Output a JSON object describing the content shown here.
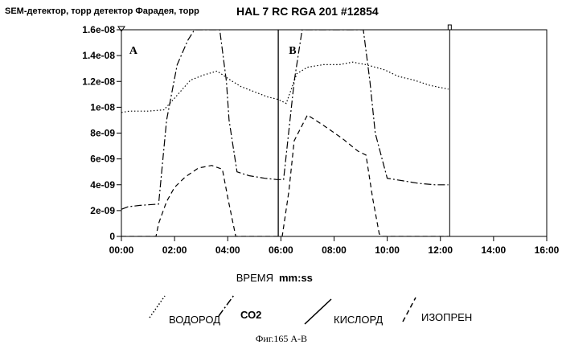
{
  "chart_data": {
    "type": "line",
    "ylabel": "SEM-детектор, торр детектор Фарадея, торр",
    "title": "HAL 7 RC RGA 201 #12854",
    "xlabel_left": "ВРЕМЯ",
    "xlabel_right": "mm:ss",
    "caption": "Фиг.165 А-В",
    "panel_labels": [
      {
        "text": "A",
        "x_min": 0.3
      },
      {
        "text": "B",
        "x_min": 6.3
      }
    ],
    "x_ticks": [
      {
        "value": 0,
        "label": "00:00"
      },
      {
        "value": 2,
        "label": "02:00"
      },
      {
        "value": 4,
        "label": "04:00"
      },
      {
        "value": 6,
        "label": "06:00"
      },
      {
        "value": 8,
        "label": "08:00"
      },
      {
        "value": 10,
        "label": "10:00"
      },
      {
        "value": 12,
        "label": "12:00"
      },
      {
        "value": 14,
        "label": "14:00"
      },
      {
        "value": 16,
        "label": "16:00"
      }
    ],
    "y_ticks": [
      {
        "value": 0,
        "label": "0"
      },
      {
        "value": 2e-09,
        "label": "2e-09"
      },
      {
        "value": 4e-09,
        "label": "4e-09"
      },
      {
        "value": 6e-09,
        "label": "6e-09"
      },
      {
        "value": 8e-09,
        "label": "8e-09"
      },
      {
        "value": 1e-08,
        "label": "1e-08"
      },
      {
        "value": 1.2e-08,
        "label": "1.2e-08"
      },
      {
        "value": 1.4e-08,
        "label": "1.4e-08"
      },
      {
        "value": 1.6e-08,
        "label": "1.6e-08"
      }
    ],
    "xlim": [
      0,
      16
    ],
    "ylim": [
      0,
      1.6e-08
    ],
    "vline_at": 5.9,
    "end_marker_at": 12.35,
    "series": [
      {
        "name": "ВОДОРОД",
        "dash": "1.5,2.5",
        "x": [
          0.0,
          0.3,
          1.0,
          1.6,
          2.0,
          2.6,
          3.1,
          3.6,
          4.1,
          4.5,
          5.0,
          5.5,
          5.9,
          6.2,
          6.6,
          7.0,
          7.6,
          8.2,
          8.7,
          9.2,
          9.9,
          10.4,
          11.0,
          11.6,
          12.3
        ],
        "y": [
          9.6e-09,
          9.7e-09,
          9.7e-09,
          9.8e-09,
          1.07e-08,
          1.21e-08,
          1.25e-08,
          1.28e-08,
          1.21e-08,
          1.16e-08,
          1.12e-08,
          1.08e-08,
          1.06e-08,
          1.03e-08,
          1.26e-08,
          1.31e-08,
          1.33e-08,
          1.33e-08,
          1.35e-08,
          1.33e-08,
          1.29e-08,
          1.24e-08,
          1.21e-08,
          1.17e-08,
          1.14e-08
        ]
      },
      {
        "name": "СО2",
        "dash": "9,3,2,3",
        "x": [
          0.0,
          0.25,
          0.7,
          1.4,
          1.7,
          2.1,
          2.5,
          2.75,
          3.7,
          3.95,
          4.05,
          4.35,
          4.8,
          5.4,
          5.85,
          6.1,
          6.5,
          6.8,
          9.1,
          9.35,
          9.55,
          10.0,
          10.6,
          11.2,
          11.8,
          12.3
        ],
        "y": [
          2.1e-09,
          2.3e-09,
          2.4e-09,
          2.5e-09,
          9e-09,
          1.33e-08,
          1.52e-08,
          1.6e-08,
          1.6e-08,
          1.2e-08,
          9e-09,
          5e-09,
          4.7e-09,
          4.5e-09,
          4.4e-09,
          4.4e-09,
          1.2e-08,
          1.6e-08,
          1.6e-08,
          1.2e-08,
          8e-09,
          4.5e-09,
          4.3e-09,
          4.1e-09,
          4e-09,
          4e-09
        ]
      },
      {
        "name": "КИСЛОРД",
        "dash": "",
        "x": [
          5.9,
          5.9
        ],
        "y": [
          0,
          1.6e-08
        ]
      },
      {
        "name": "ИЗОПРЕН",
        "dash": "6,4",
        "x": [
          0.0,
          0.6,
          1.3,
          1.4,
          1.7,
          2.0,
          2.4,
          2.9,
          3.4,
          3.8,
          4.0,
          4.2,
          4.3,
          5.85,
          6.05,
          6.3,
          6.5,
          7.0,
          7.6,
          8.3,
          8.9,
          9.2,
          9.45,
          9.7,
          9.8,
          12.3
        ],
        "y": [
          0,
          0,
          0,
          1e-09,
          2.7e-09,
          3.8e-09,
          4.6e-09,
          5.3e-09,
          5.5e-09,
          5.2e-09,
          3e-09,
          1e-09,
          0,
          0,
          0,
          3.5e-09,
          7.4e-09,
          9.4e-09,
          8.6e-09,
          7.6e-09,
          6.6e-09,
          6.3e-09,
          3e-09,
          2e-10,
          0,
          0
        ]
      }
    ],
    "legend": [
      {
        "name": "ВОДОРОД",
        "dash": "1.5,2.5"
      },
      {
        "name": "СО2",
        "dash": "9,3,2,3"
      },
      {
        "name": "КИСЛОРД",
        "dash": ""
      },
      {
        "name": "ИЗОПРЕН",
        "dash": "6,4"
      }
    ],
    "legend_placement": "bottom",
    "grid": false
  }
}
